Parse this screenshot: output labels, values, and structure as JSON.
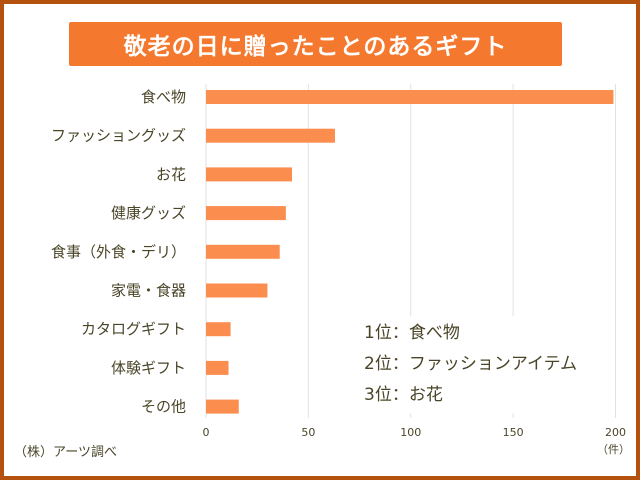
{
  "chart_data": {
    "type": "bar",
    "orientation": "horizontal",
    "title": "敬老の日に贈ったことのあるギフト",
    "categories": [
      "食べ物",
      "ファッショングッズ",
      "お花",
      "健康グッズ",
      "食事（外食・デリ）",
      "家電・食器",
      "カタログギフト",
      "体験ギフト",
      "その他"
    ],
    "values": [
      199,
      63,
      42,
      39,
      36,
      30,
      12,
      11,
      16
    ],
    "xlim": [
      0,
      200
    ],
    "xticks": [
      "0",
      "50",
      "100",
      "150",
      "200"
    ],
    "xunit": "（件）",
    "grid": true,
    "bar_color": "#fb8d4f",
    "annotations": [
      "1位：食べ物",
      "2位：ファッションアイテム",
      "3位：お花"
    ],
    "source": "（株）アーツ調べ"
  },
  "colors": {
    "frame": "#b4510f",
    "title_bg": "#f4792f",
    "text": "#4a4528"
  }
}
